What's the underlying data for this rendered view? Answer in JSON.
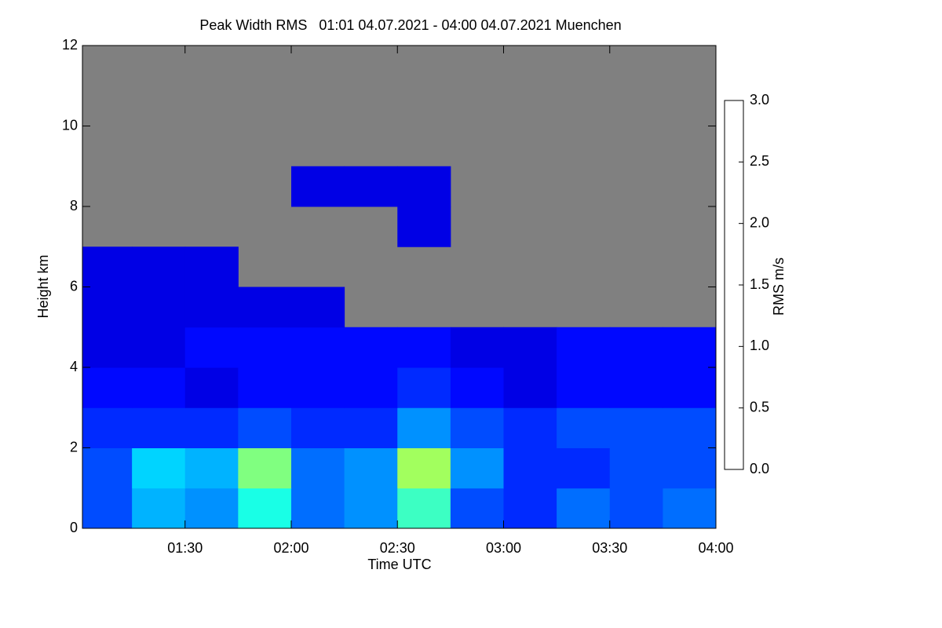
{
  "chart_data": {
    "type": "heatmap",
    "title": "Peak Width RMS   01:01 04.07.2021 - 04:00 04.07.2021 Muenchen",
    "x_label": "Time UTC",
    "y_label": "Height km",
    "colorbar_label": "RMS m/s",
    "colormap": "jet",
    "missing_color": "#808080",
    "x_bins": [
      61,
      75,
      90,
      105,
      120,
      135,
      150,
      165,
      180,
      195,
      210,
      225,
      240
    ],
    "y_bins": [
      0,
      1,
      2,
      3,
      4,
      5,
      6,
      7,
      8,
      9,
      10,
      11,
      12
    ],
    "values": [
      [
        0.6,
        0.9,
        0.8,
        1.2,
        0.7,
        0.8,
        1.3,
        0.6,
        0.5,
        0.7,
        0.6,
        0.7
      ],
      [
        0.6,
        1.0,
        0.9,
        1.5,
        0.7,
        0.8,
        1.6,
        0.8,
        0.5,
        0.5,
        0.6,
        0.6
      ],
      [
        0.5,
        0.5,
        0.5,
        0.6,
        0.5,
        0.5,
        0.8,
        0.6,
        0.5,
        0.6,
        0.6,
        0.6
      ],
      [
        0.4,
        0.4,
        0.3,
        0.4,
        0.4,
        0.4,
        0.5,
        0.4,
        0.3,
        0.4,
        0.4,
        0.4
      ],
      [
        0.3,
        0.3,
        0.4,
        0.4,
        0.4,
        0.4,
        0.4,
        0.3,
        0.3,
        0.4,
        0.4,
        0.4
      ],
      [
        0.3,
        0.3,
        0.3,
        0.3,
        0.3,
        null,
        null,
        null,
        null,
        null,
        null,
        null
      ],
      [
        0.3,
        0.3,
        0.3,
        null,
        null,
        null,
        null,
        null,
        null,
        null,
        null,
        null
      ],
      [
        null,
        null,
        null,
        null,
        null,
        null,
        0.3,
        null,
        null,
        null,
        null,
        null
      ],
      [
        null,
        null,
        null,
        null,
        0.3,
        0.3,
        0.3,
        null,
        null,
        null,
        null,
        null
      ],
      [
        null,
        null,
        null,
        null,
        null,
        null,
        null,
        null,
        null,
        null,
        null,
        null
      ],
      [
        null,
        null,
        null,
        null,
        null,
        null,
        null,
        null,
        null,
        null,
        null,
        null
      ],
      [
        null,
        null,
        null,
        null,
        null,
        null,
        null,
        null,
        null,
        null,
        null,
        null
      ]
    ],
    "xlim": [
      61,
      240
    ],
    "xticks": [
      {
        "value": 90,
        "label": "01:30"
      },
      {
        "value": 120,
        "label": "02:00"
      },
      {
        "value": 150,
        "label": "02:30"
      },
      {
        "value": 180,
        "label": "03:00"
      },
      {
        "value": 210,
        "label": "03:30"
      },
      {
        "value": 240,
        "label": "04:00"
      }
    ],
    "ylim": [
      0,
      12
    ],
    "yticks": [
      0,
      2,
      4,
      6,
      8,
      10,
      12
    ],
    "clim": [
      0,
      3
    ],
    "cticks": [
      {
        "value": 0,
        "label": "0.0"
      },
      {
        "value": 0.5,
        "label": "0.5"
      },
      {
        "value": 1,
        "label": "1.0"
      },
      {
        "value": 1.5,
        "label": "1.5"
      },
      {
        "value": 2,
        "label": "2.0"
      },
      {
        "value": 2.5,
        "label": "2.5"
      },
      {
        "value": 3,
        "label": "3.0"
      }
    ]
  }
}
